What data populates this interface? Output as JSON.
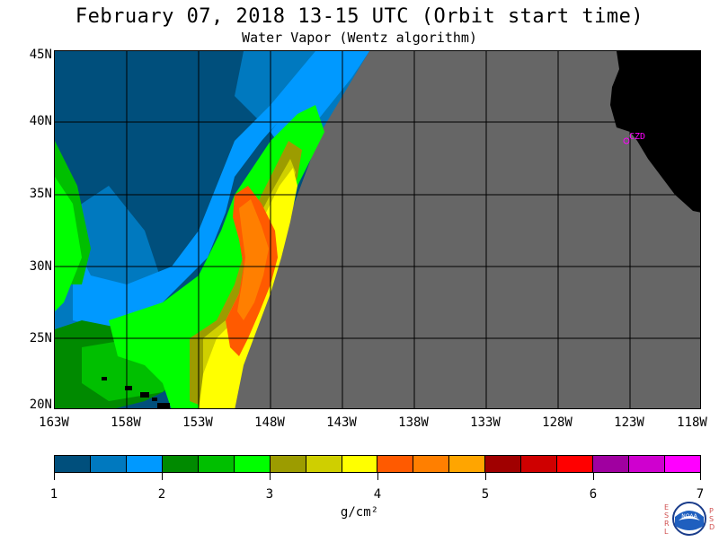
{
  "header": {
    "title": "February 07, 2018  13-15 UTC  (Orbit start time)",
    "subtitle": "Water Vapor (Wentz algorithm)"
  },
  "map": {
    "lat_labels": [
      "45N",
      "40N",
      "35N",
      "30N",
      "25N",
      "20N"
    ],
    "lon_labels": [
      "163W",
      "158W",
      "153W",
      "148W",
      "143W",
      "138W",
      "133W",
      "128W",
      "123W",
      "118W"
    ],
    "city_label": "CZD",
    "no_data_color": "#666666",
    "land_color": "#000000"
  },
  "colorbar": {
    "colors": [
      "#004f7c",
      "#0079bf",
      "#0099ff",
      "#008a00",
      "#00bf00",
      "#00ff00",
      "#9c9c00",
      "#cfcf00",
      "#ffff00",
      "#ff5a00",
      "#ff7f00",
      "#ffa500",
      "#a00000",
      "#cf0000",
      "#ff0000",
      "#a000a0",
      "#cf00cf",
      "#ff00ff"
    ],
    "tick_labels": [
      "1",
      "2",
      "3",
      "4",
      "5",
      "6",
      "7"
    ],
    "unit": "g/cm²"
  },
  "logo": {
    "left_letters": "ESRL",
    "right_letters": "PSD",
    "emblem": "NOAA"
  }
}
